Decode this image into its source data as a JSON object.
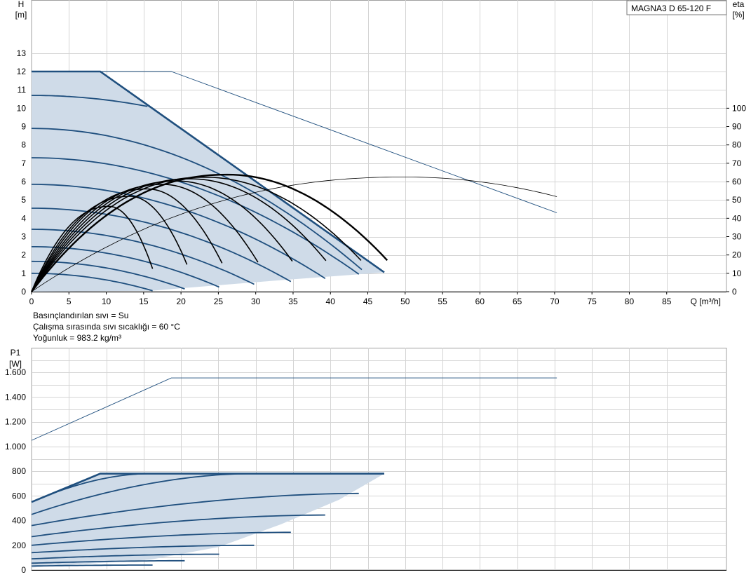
{
  "product_label": "MAGNA3 D 65-120 F",
  "notes": {
    "liquid": "Basınçlandırılan sıvı = Su",
    "temperature": "Çalışma sırasında sıvı sıcaklığı = 60 °C",
    "density": "Yoğunluk = 983.2 kg/m³"
  },
  "colors": {
    "fill": "#cfdbe8",
    "curve": "#1f4f7e",
    "grid": "#d4d4d4",
    "eta": "#000000"
  },
  "chart_data": [
    {
      "type": "line",
      "xlabel": "Q [m³/h]",
      "ylabel_top": "H",
      "ylabel_unit": "[m]",
      "y2label_top": "eta",
      "y2label_unit": "[%]",
      "xlim": [
        0,
        93
      ],
      "ylim": [
        0,
        15.9
      ],
      "y2lim": [
        0,
        159
      ],
      "x_ticks": [
        0,
        5,
        10,
        15,
        20,
        25,
        30,
        35,
        40,
        45,
        50,
        55,
        60,
        65,
        70,
        75,
        80,
        85
      ],
      "y_ticks": [
        0,
        1,
        2,
        3,
        4,
        5,
        6,
        7,
        8,
        9,
        10,
        11,
        12,
        13
      ],
      "y2_ticks": [
        0,
        10,
        20,
        30,
        40,
        50,
        60,
        70,
        80,
        90,
        100
      ],
      "operating_area": [
        [
          0,
          12
        ],
        [
          9.2,
          12
        ],
        [
          47.2,
          1.05
        ],
        [
          32,
          0.58
        ],
        [
          16,
          0.05
        ],
        [
          0,
          0
        ]
      ],
      "max_curve": [
        [
          0,
          12
        ],
        [
          9.2,
          12
        ],
        [
          47.2,
          1.05
        ]
      ],
      "speed_curves": [
        {
          "h0": 10.7,
          "q_end": 15.5,
          "h_end": 10.1
        },
        {
          "h0": 8.9,
          "q_end": 44.2,
          "h_end": 1.2
        },
        {
          "h0": 7.3,
          "q_end": 43.8,
          "h_end": 0.95
        },
        {
          "h0": 5.85,
          "q_end": 39.3,
          "h_end": 0.72
        },
        {
          "h0": 4.55,
          "q_end": 34.7,
          "h_end": 0.55
        },
        {
          "h0": 3.4,
          "q_end": 29.8,
          "h_end": 0.4
        },
        {
          "h0": 2.45,
          "q_end": 25.1,
          "h_end": 0.25
        },
        {
          "h0": 1.65,
          "q_end": 20.5,
          "h_end": 0.15
        },
        {
          "h0": 1.0,
          "q_end": 16.2,
          "h_end": 0.05
        }
      ],
      "head_thin_line": [
        [
          0,
          12
        ],
        [
          18.7,
          12
        ],
        [
          70.3,
          4.3
        ]
      ],
      "eta_curves": [
        {
          "q_peak": 10.4,
          "eta_peak": 46.5,
          "q_end": 16.2,
          "eta_end": 12.5
        },
        {
          "q_peak": 13.2,
          "eta_peak": 52.0,
          "q_end": 20.8,
          "eta_end": 14.8
        },
        {
          "q_peak": 15.5,
          "eta_peak": 56.0,
          "q_end": 25.5,
          "eta_end": 15.5
        },
        {
          "q_peak": 17.6,
          "eta_peak": 58.5,
          "q_end": 30.3,
          "eta_end": 16.0
        },
        {
          "q_peak": 19.5,
          "eta_peak": 60.3,
          "q_end": 34.9,
          "eta_end": 16.6
        },
        {
          "q_peak": 21.3,
          "eta_peak": 61.5,
          "q_end": 39.4,
          "eta_end": 16.9
        },
        {
          "q_peak": 23.2,
          "eta_peak": 62.4,
          "q_end": 44.1,
          "eta_end": 17.0
        },
        {
          "q_peak": 26.3,
          "eta_peak": 63.8,
          "q_end": 47.6,
          "eta_end": 17.1
        }
      ],
      "eta_thin_curve": {
        "q_peak": 50.0,
        "eta_peak": 62.5,
        "q_end": 70.3,
        "eta_end": 51.8
      }
    },
    {
      "type": "line",
      "ylabel_top": "P1",
      "ylabel_unit": "[W]",
      "xlim": [
        0,
        93
      ],
      "ylim": [
        0,
        1800
      ],
      "y_ticks": [
        0,
        200,
        400,
        600,
        800,
        1000,
        1200,
        1400,
        1600
      ],
      "y_tick_labels": [
        "0",
        "200",
        "400",
        "600",
        "800",
        "1.000",
        "1.200",
        "1.400",
        "1.600"
      ],
      "operating_area": [
        [
          0,
          550
        ],
        [
          9.2,
          780
        ],
        [
          47.2,
          780
        ],
        [
          41.2,
          570
        ],
        [
          33.4,
          370
        ],
        [
          25.0,
          185
        ],
        [
          16.0,
          85
        ],
        [
          0,
          20
        ]
      ],
      "max_curve": [
        [
          0,
          550
        ],
        [
          9.2,
          780
        ],
        [
          47.2,
          780
        ]
      ],
      "speed_curves": [
        {
          "p0": 550,
          "q_end": 15.5,
          "p_end": 780
        },
        {
          "p0": 450,
          "q_end": 29.1,
          "p_end": 780
        },
        {
          "p0": 360,
          "q_end": 43.8,
          "p_end": 620
        },
        {
          "p0": 270,
          "q_end": 39.3,
          "p_end": 445
        },
        {
          "p0": 200,
          "q_end": 34.7,
          "p_end": 305
        },
        {
          "p0": 140,
          "q_end": 29.8,
          "p_end": 200
        },
        {
          "p0": 90,
          "q_end": 25.1,
          "p_end": 128
        },
        {
          "p0": 55,
          "q_end": 20.5,
          "p_end": 75
        },
        {
          "p0": 32,
          "q_end": 16.2,
          "p_end": 40
        }
      ],
      "power_thin_line": [
        [
          0,
          1050
        ],
        [
          18.7,
          1555
        ],
        [
          70.3,
          1555
        ]
      ]
    }
  ]
}
